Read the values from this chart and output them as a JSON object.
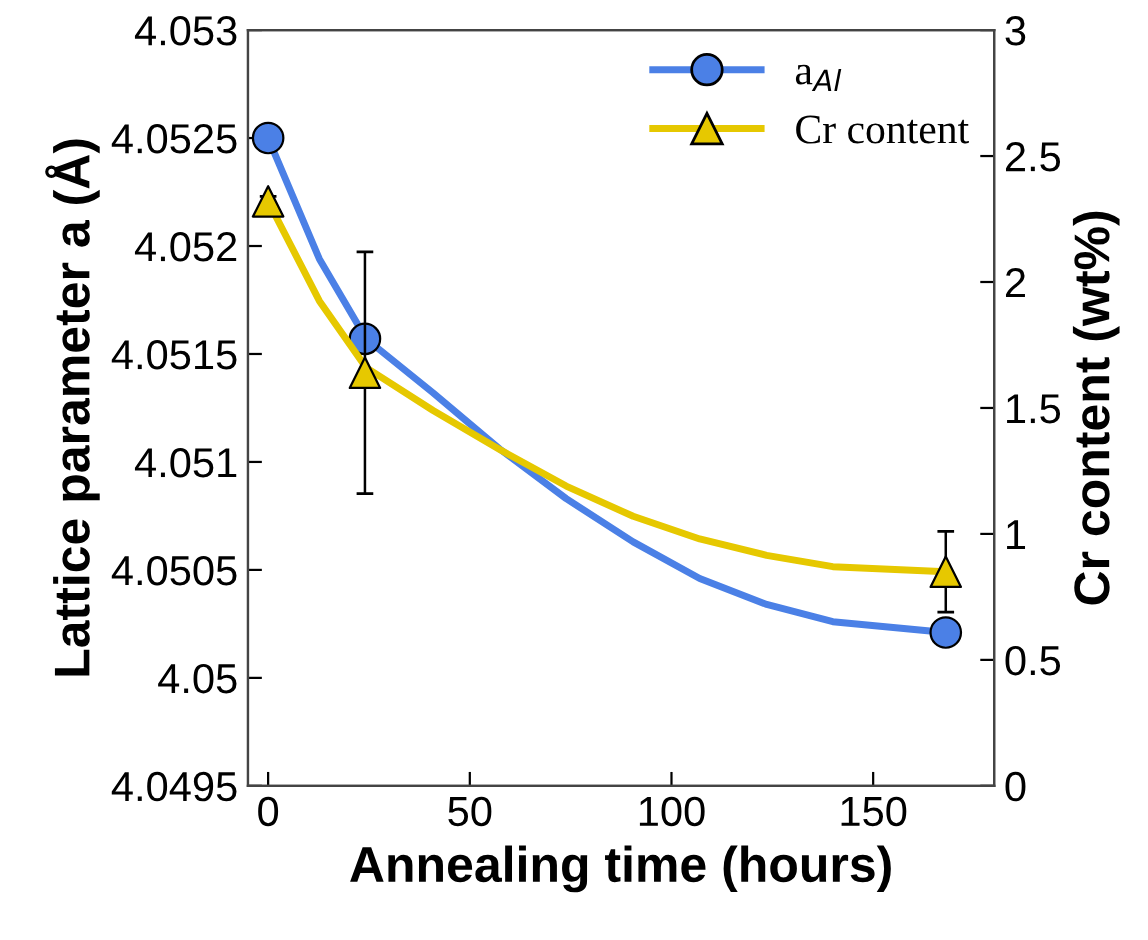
{
  "chart_data": {
    "type": "line",
    "xlabel": "Annealing time (hours)",
    "ylabel": "Lattice parameter a (Å)",
    "y2label": "Cr content (wt%)",
    "xlim": [
      -5,
      180
    ],
    "xticks": [
      0,
      50,
      100,
      150
    ],
    "ylim": [
      4.0495,
      4.053
    ],
    "yticks": [
      4.0495,
      4.05,
      4.0505,
      4.051,
      4.0515,
      4.052,
      4.0525,
      4.053
    ],
    "y2lim": [
      0,
      3
    ],
    "y2ticks": [
      0,
      0.5,
      1,
      1.5,
      2,
      2.5,
      3
    ],
    "legend": "top right",
    "series": [
      {
        "color": "#4b80e6",
        "axis": "y",
        "marker": "none",
        "x": [
          0,
          12.7,
          24.3,
          40.9,
          57.4,
          73.9,
          90.5,
          107,
          123.6,
          140,
          168
        ],
        "values": [
          4.0525,
          4.05194,
          4.05157,
          4.05132,
          4.05106,
          4.05083,
          4.05063,
          4.05046,
          4.05034,
          4.05026,
          4.05021
        ]
      },
      {
        "color": "#e6c800",
        "axis": "y2",
        "marker": "none",
        "x": [
          0,
          12.7,
          24.3,
          40.9,
          57.4,
          73.9,
          90.5,
          107,
          123.6,
          140,
          168
        ],
        "values": [
          2.32,
          1.925,
          1.66,
          1.49,
          1.335,
          1.19,
          1.07,
          0.98,
          0.915,
          0.87,
          0.85
        ]
      },
      {
        "type": "scatter",
        "name": "a$_{Al}$",
        "color": "#4b80e6",
        "axis": "y",
        "marker": "circle",
        "x": [
          0,
          24,
          168
        ],
        "values": [
          4.0525,
          4.05157,
          4.05021
        ]
      },
      {
        "type": "scatter",
        "name": "Cr content",
        "color": "#e6c800",
        "axis": "y2",
        "marker": "triangle",
        "x": [
          0,
          24,
          168
        ],
        "values": [
          2.32,
          1.64,
          0.85
        ],
        "errors": [
          0.02,
          0.48,
          0.16
        ]
      }
    ]
  }
}
